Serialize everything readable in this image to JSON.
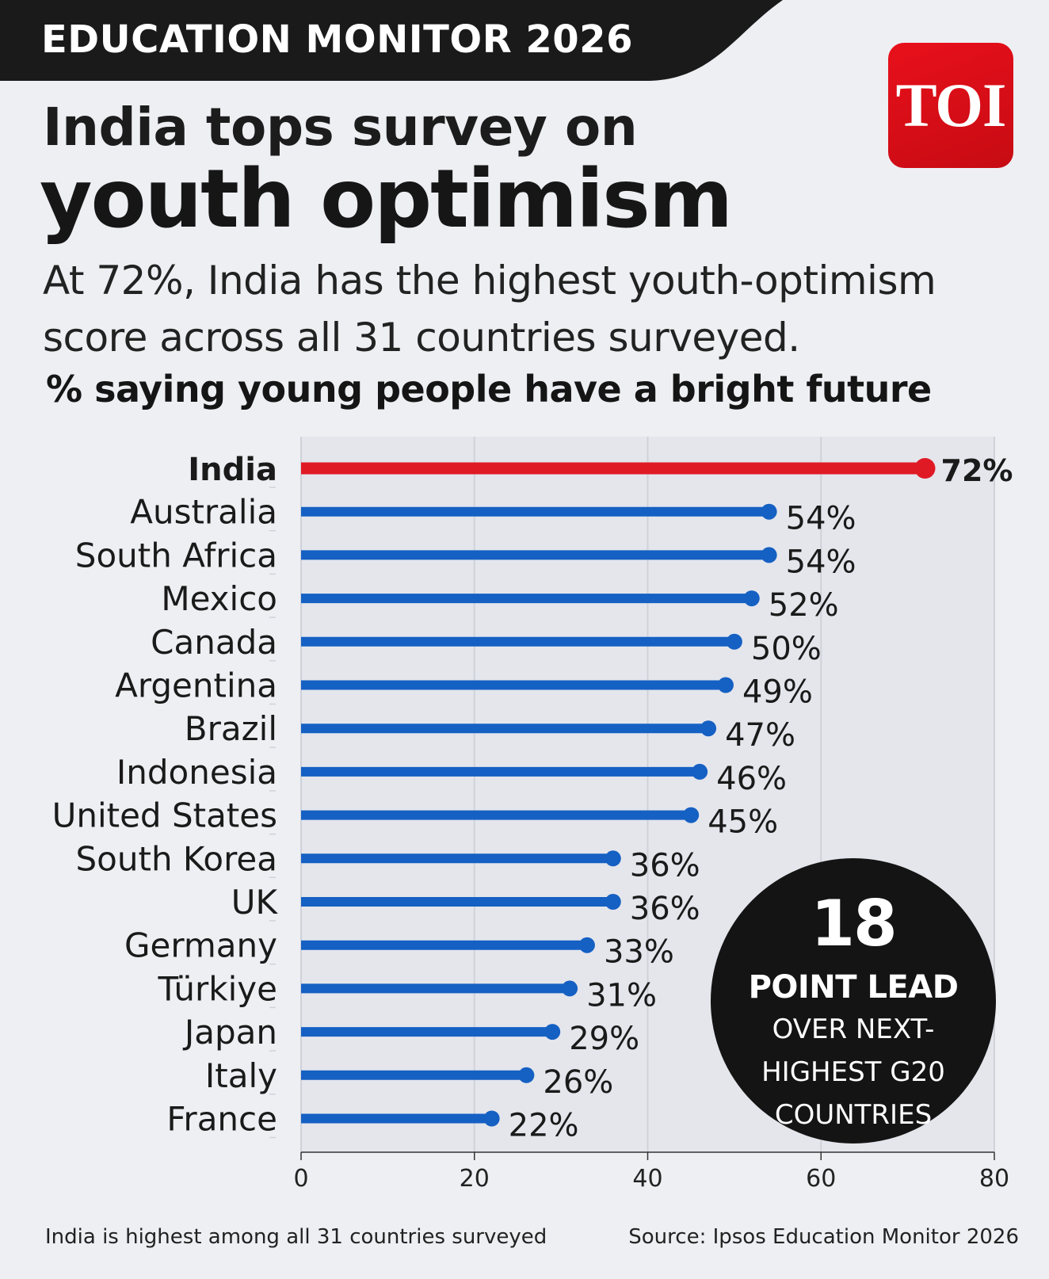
{
  "header": {
    "banner": "EDUCATION MONITOR 2026",
    "logo": "TOI",
    "title_line1": "India tops survey on",
    "title_line2": "youth optimism",
    "subtitle": "At 72%, India has the highest youth-optimism score across all 31 countries surveyed."
  },
  "colors": {
    "highlight": "#e01a25",
    "bars": "#1560c3",
    "banner": "#1a1a1a",
    "plot_background": "#e4e6ec"
  },
  "chart_data": {
    "type": "bar",
    "orientation": "horizontal",
    "style": "lollipop",
    "title": "% saying young people have a bright future",
    "categories": [
      "India",
      "Australia",
      "South Africa",
      "Mexico",
      "Canada",
      "Argentina",
      "Brazil",
      "Indonesia",
      "United States",
      "South Korea",
      "UK",
      "Germany",
      "Türkiye",
      "Japan",
      "Italy",
      "France"
    ],
    "values": [
      72,
      54,
      54,
      52,
      50,
      49,
      47,
      46,
      45,
      36,
      36,
      33,
      31,
      29,
      26,
      22
    ],
    "value_labels": [
      "72%",
      "54%",
      "54%",
      "52%",
      "50%",
      "49%",
      "47%",
      "46%",
      "45%",
      "36%",
      "36%",
      "33%",
      "31%",
      "29%",
      "26%",
      "22%"
    ],
    "highlight": "India",
    "xlim": [
      0,
      80
    ],
    "xticks": [
      0,
      20,
      40,
      60,
      80
    ],
    "grid": true
  },
  "callout": {
    "number": "18",
    "headline": "POINT LEAD",
    "line1": "OVER NEXT-",
    "line2": "HIGHEST G20",
    "line3": "COUNTRIES"
  },
  "footer": {
    "note": "India is highest among all 31 countries surveyed",
    "source": "Source: Ipsos Education Monitor 2026"
  }
}
